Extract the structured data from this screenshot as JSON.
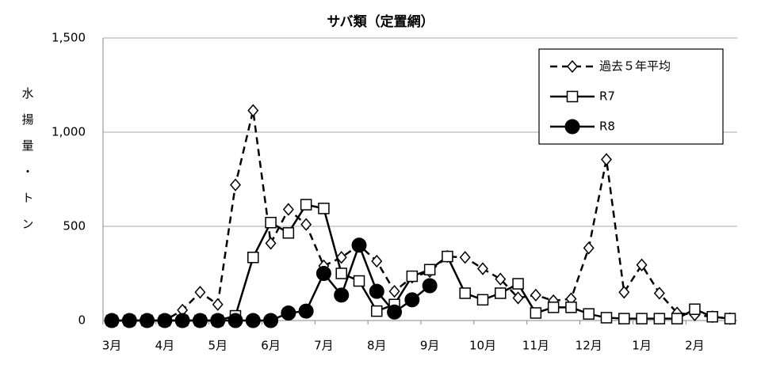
{
  "chart_data": {
    "type": "line",
    "title": "サバ類（定置網）",
    "y_label": "水揚量・トン",
    "categories": [
      "3月",
      null,
      null,
      "4月",
      null,
      null,
      "5月",
      null,
      null,
      "6月",
      null,
      null,
      "7月",
      null,
      null,
      "8月",
      null,
      null,
      "9月",
      null,
      null,
      "10月",
      null,
      null,
      "11月",
      null,
      null,
      "12月",
      null,
      null,
      "1月",
      null,
      null,
      "2月",
      null,
      null
    ],
    "series": [
      {
        "name": "過去５年平均",
        "color": "#000000",
        "linestyle": "dashed",
        "marker": "diamond",
        "values": [
          0,
          0,
          0,
          0,
          55,
          150,
          85,
          720,
          1115,
          410,
          590,
          510,
          290,
          335,
          400,
          315,
          155,
          230,
          260,
          340,
          335,
          275,
          220,
          120,
          135,
          105,
          115,
          385,
          855,
          150,
          295,
          145,
          40,
          30,
          20,
          10
        ]
      },
      {
        "name": "R7",
        "color": "#000000",
        "linestyle": "solid",
        "marker": "square",
        "values": [
          0,
          0,
          0,
          0,
          0,
          0,
          0,
          25,
          335,
          520,
          465,
          615,
          595,
          250,
          210,
          50,
          85,
          235,
          270,
          340,
          145,
          110,
          145,
          195,
          40,
          70,
          70,
          35,
          15,
          10,
          10,
          10,
          10,
          60,
          20,
          10
        ]
      },
      {
        "name": "R8",
        "color": "#000000",
        "linestyle": "solid",
        "marker": "circle",
        "values": [
          0,
          0,
          0,
          0,
          0,
          0,
          0,
          0,
          0,
          0,
          40,
          50,
          250,
          135,
          400,
          155,
          45,
          110,
          185,
          null,
          null,
          null,
          null,
          null,
          null,
          null,
          null,
          null,
          null,
          null,
          null,
          null,
          null,
          null,
          null,
          null
        ]
      }
    ],
    "ylim": [
      0,
      1500
    ],
    "yticks": [
      0,
      500,
      {
        "value": 1000,
        "label": "1,000"
      },
      {
        "value": 1500,
        "label": "1,500"
      }
    ],
    "grid": true,
    "legend": "upper right"
  }
}
